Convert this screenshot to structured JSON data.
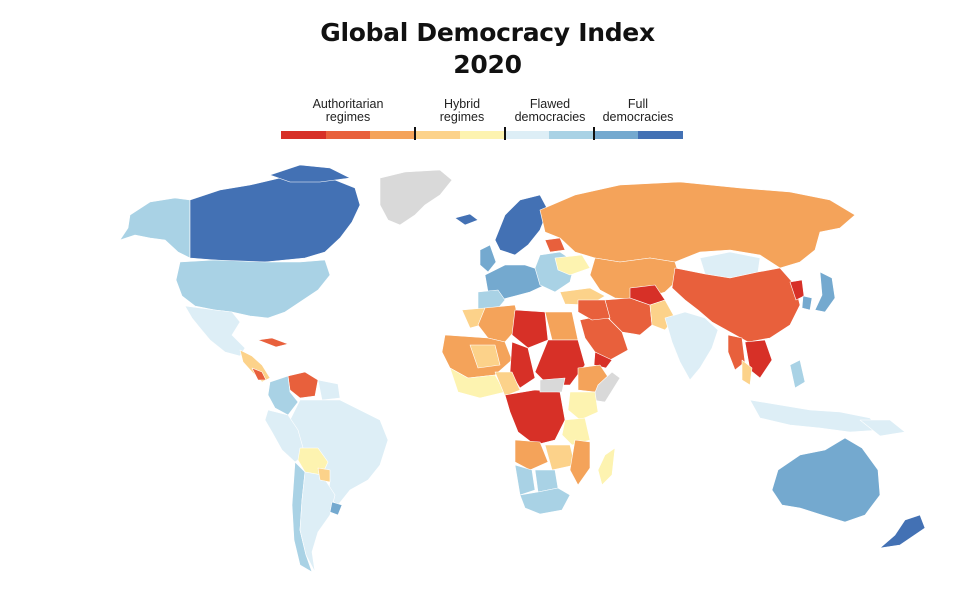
{
  "title": {
    "line1": "Global Democracy Index",
    "line2": "2020"
  },
  "legend": {
    "categories": [
      {
        "label": "Authoritarian\nregimes"
      },
      {
        "label": "Hybrid\nregimes"
      },
      {
        "label": "Flawed\ndemocracies"
      },
      {
        "label": "Full\ndemocracies"
      }
    ],
    "colors": [
      "#d73027",
      "#e8603c",
      "#f4a35a",
      "#fcd28a",
      "#fdf3b0",
      "#ddeef6",
      "#a9d2e5",
      "#74a9cf",
      "#4371b4"
    ]
  },
  "palette": {
    "auth_dark": "#d73027",
    "auth_mid": "#e8603c",
    "auth_light": "#f4a35a",
    "hybrid_orange": "#fcd28a",
    "hybrid_yellow": "#fdf3b0",
    "flawed_light": "#ddeef6",
    "flawed_mid": "#a9d2e5",
    "full_light": "#74a9cf",
    "full_dark": "#4371b4",
    "no_data": "#d9d9d9"
  }
}
